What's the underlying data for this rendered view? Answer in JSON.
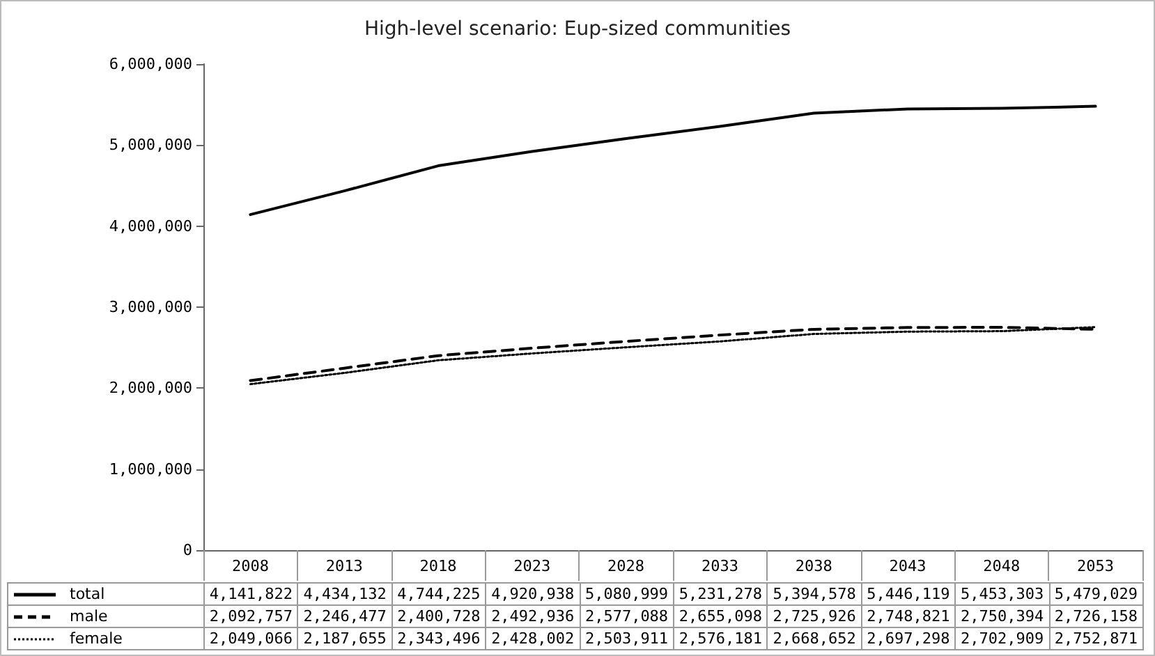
{
  "chart_data": {
    "type": "line",
    "title": "High-level scenario: Eup-sized communities",
    "categories": [
      "2008",
      "2013",
      "2018",
      "2023",
      "2028",
      "2033",
      "2038",
      "2043",
      "2048",
      "2053"
    ],
    "series": [
      {
        "name": "total",
        "color": "#000000",
        "line_style": "solid",
        "values": [
          4141822,
          4434132,
          4744225,
          4920938,
          5080999,
          5231278,
          5394578,
          5446119,
          5453303,
          5479029
        ],
        "value_labels": [
          "4,141,822",
          "4,434,132",
          "4,744,225",
          "4,920,938",
          "5,080,999",
          "5,231,278",
          "5,394,578",
          "5,446,119",
          "5,453,303",
          "5,479,029"
        ]
      },
      {
        "name": "male",
        "color": "#000000",
        "line_style": "dashed",
        "values": [
          2092757,
          2246477,
          2400728,
          2492936,
          2577088,
          2655098,
          2725926,
          2748821,
          2750394,
          2726158
        ],
        "value_labels": [
          "2,092,757",
          "2,246,477",
          "2,400,728",
          "2,492,936",
          "2,577,088",
          "2,655,098",
          "2,725,926",
          "2,748,821",
          "2,750,394",
          "2,726,158"
        ]
      },
      {
        "name": "female",
        "color": "#000000",
        "line_style": "dotted",
        "values": [
          2049066,
          2187655,
          2343496,
          2428002,
          2503911,
          2576181,
          2668652,
          2697298,
          2702909,
          2752871
        ],
        "value_labels": [
          "2,049,066",
          "2,187,655",
          "2,343,496",
          "2,428,002",
          "2,503,911",
          "2,576,181",
          "2,668,652",
          "2,697,298",
          "2,702,909",
          "2,752,871"
        ]
      }
    ],
    "ylim": [
      0,
      6000000
    ],
    "yticks": [
      0,
      {
        "value": 1000000,
        "label": "1,000,000"
      },
      {
        "value": 2000000,
        "label": "2,000,000"
      },
      {
        "value": 3000000,
        "label": "3,000,000"
      },
      {
        "value": 4000000,
        "label": "4,000,000"
      },
      {
        "value": 5000000,
        "label": "5,000,000"
      },
      {
        "value": 6000000,
        "label": "6,000,000"
      }
    ],
    "grid": false,
    "legend": "bottom",
    "marker": "none"
  }
}
